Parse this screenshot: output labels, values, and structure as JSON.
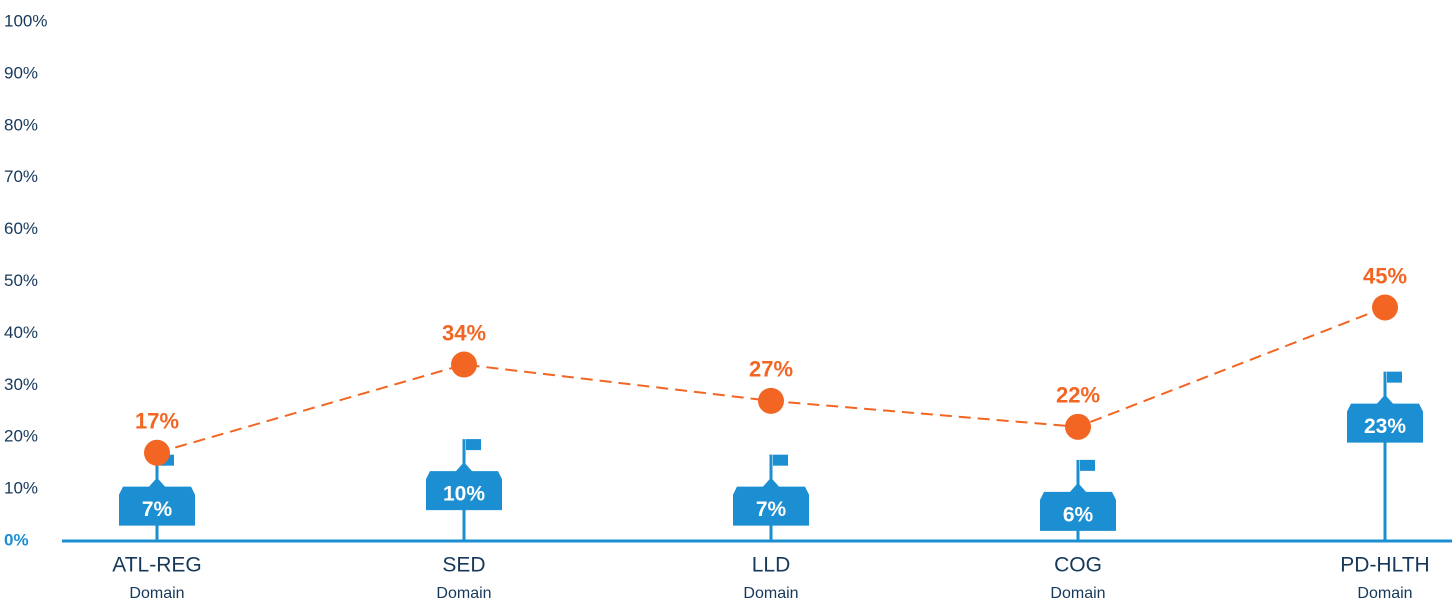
{
  "chart_data": {
    "type": "line",
    "categories": [
      [
        "ATL-REG",
        "Domain"
      ],
      [
        "SED",
        "Domain"
      ],
      [
        "LLD",
        "Domain"
      ],
      [
        "COG",
        "Domain"
      ],
      [
        "PD-HLTH",
        "Domain"
      ]
    ],
    "series": [
      {
        "color": "#f26522",
        "values": [
          17,
          34,
          27,
          22,
          45
        ],
        "value_labels": [
          "17%",
          "34%",
          "27%",
          "22%",
          "45%"
        ]
      },
      {
        "color": "#1b8fd2",
        "values": [
          7,
          10,
          7,
          6,
          23
        ],
        "value_labels": [
          "7%",
          "10%",
          "7%",
          "6%",
          "23%"
        ]
      }
    ],
    "ylim": [
      0,
      100
    ],
    "yticks": [
      {
        "value": 0,
        "label": "0%"
      },
      {
        "value": 10,
        "label": "10%"
      },
      {
        "value": 20,
        "label": "20%"
      },
      {
        "value": 30,
        "label": "30%"
      },
      {
        "value": 40,
        "label": "40%"
      },
      {
        "value": 50,
        "label": "50%"
      },
      {
        "value": 60,
        "label": "60%"
      },
      {
        "value": 70,
        "label": "70%"
      },
      {
        "value": 80,
        "label": "80%"
      },
      {
        "value": 90,
        "label": "90%"
      },
      {
        "value": 100,
        "label": "100%"
      }
    ],
    "grid": false
  }
}
